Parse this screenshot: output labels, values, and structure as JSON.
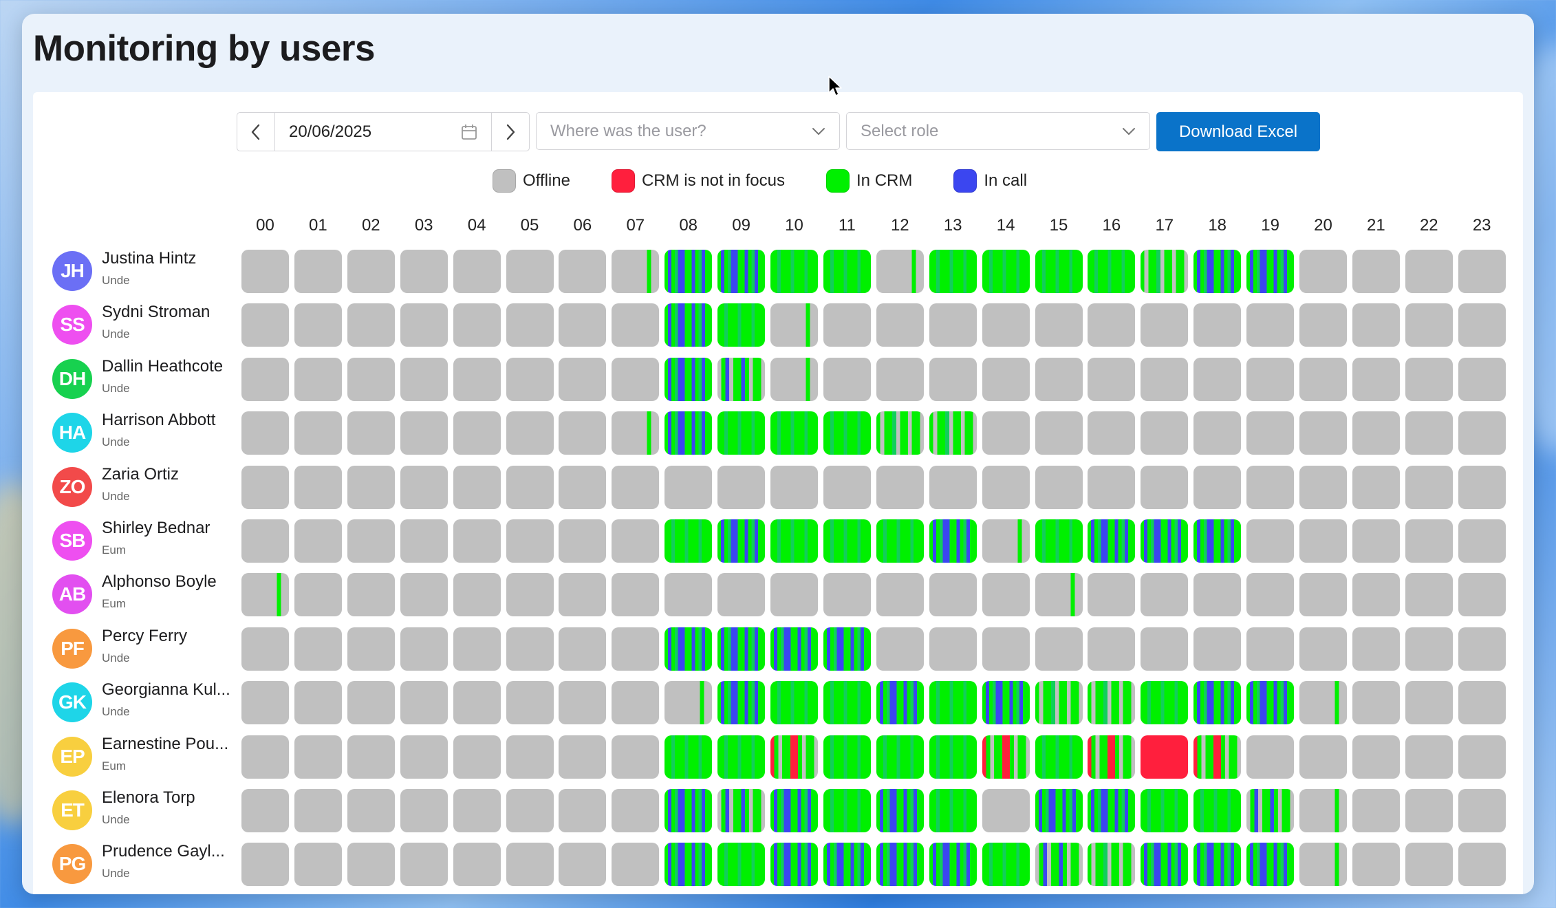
{
  "page": {
    "title": "Monitoring by users"
  },
  "toolbar": {
    "date": "20/06/2025",
    "location_placeholder": "Where was the user?",
    "role_placeholder": "Select role",
    "download_label": "Download Excel"
  },
  "legend": [
    {
      "label": "Offline",
      "color": "#c0c0c0"
    },
    {
      "label": "CRM is not in focus",
      "color": "#ff1f3d"
    },
    {
      "label": "In CRM",
      "color": "#00f000"
    },
    {
      "label": "In call",
      "color": "#3b46f0"
    }
  ],
  "hours": [
    "00",
    "01",
    "02",
    "03",
    "04",
    "05",
    "06",
    "07",
    "08",
    "09",
    "10",
    "11",
    "12",
    "13",
    "14",
    "15",
    "16",
    "17",
    "18",
    "19",
    "20",
    "21",
    "22",
    "23"
  ],
  "users": [
    {
      "initials": "JH",
      "name": "Justina Hintz",
      "role": "Unde",
      "avatar_color": "#6b6ff5",
      "hours": [
        "o",
        "o",
        "o",
        "o",
        "o",
        "o",
        "o",
        "O",
        "M",
        "M",
        "G",
        "G",
        "O",
        "G",
        "G",
        "G",
        "G",
        "g",
        "M",
        "M",
        "o",
        "o",
        "o",
        "o"
      ]
    },
    {
      "initials": "SS",
      "name": "Sydni Stroman",
      "role": "Unde",
      "avatar_color": "#ee4ff0",
      "hours": [
        "o",
        "o",
        "o",
        "o",
        "o",
        "o",
        "o",
        "o",
        "M",
        "G",
        "O",
        "o",
        "o",
        "o",
        "o",
        "o",
        "o",
        "o",
        "o",
        "o",
        "o",
        "o",
        "o",
        "o"
      ]
    },
    {
      "initials": "DH",
      "name": "Dallin Heathcote",
      "role": "Unde",
      "avatar_color": "#17d14f",
      "hours": [
        "o",
        "o",
        "o",
        "o",
        "o",
        "o",
        "o",
        "o",
        "M",
        "m",
        "O",
        "o",
        "o",
        "o",
        "o",
        "o",
        "o",
        "o",
        "o",
        "o",
        "o",
        "o",
        "o",
        "o"
      ]
    },
    {
      "initials": "HA",
      "name": "Harrison Abbott",
      "role": "Unde",
      "avatar_color": "#1ed5e8",
      "hours": [
        "o",
        "o",
        "o",
        "o",
        "o",
        "o",
        "o",
        "O",
        "M",
        "G",
        "G",
        "G",
        "g",
        "g",
        "o",
        "o",
        "o",
        "o",
        "o",
        "o",
        "o",
        "o",
        "o",
        "o"
      ]
    },
    {
      "initials": "ZO",
      "name": "Zaria Ortiz",
      "role": "Unde",
      "avatar_color": "#f24a4a",
      "hours": [
        "o",
        "o",
        "o",
        "o",
        "o",
        "o",
        "o",
        "o",
        "o",
        "o",
        "o",
        "o",
        "o",
        "o",
        "o",
        "o",
        "o",
        "o",
        "o",
        "o",
        "o",
        "o",
        "o",
        "o"
      ]
    },
    {
      "initials": "SB",
      "name": "Shirley Bednar",
      "role": "Eum",
      "avatar_color": "#ee4ff0",
      "hours": [
        "o",
        "o",
        "o",
        "o",
        "o",
        "o",
        "o",
        "o",
        "G",
        "M",
        "G",
        "G",
        "G",
        "M",
        "O",
        "G",
        "M",
        "M",
        "M",
        "o",
        "o",
        "o",
        "o",
        "o"
      ]
    },
    {
      "initials": "AB",
      "name": "Alphonso Boyle",
      "role": "Eum",
      "avatar_color": "#e24ff0",
      "hours": [
        "O",
        "o",
        "o",
        "o",
        "o",
        "o",
        "o",
        "o",
        "o",
        "o",
        "o",
        "o",
        "o",
        "o",
        "o",
        "O",
        "o",
        "o",
        "o",
        "o",
        "o",
        "o",
        "o",
        "o"
      ]
    },
    {
      "initials": "PF",
      "name": "Percy Ferry",
      "role": "Unde",
      "avatar_color": "#f8993f",
      "hours": [
        "o",
        "o",
        "o",
        "o",
        "o",
        "o",
        "o",
        "o",
        "M",
        "M",
        "M",
        "M",
        "o",
        "o",
        "o",
        "o",
        "o",
        "o",
        "o",
        "o",
        "o",
        "o",
        "o",
        "o"
      ]
    },
    {
      "initials": "GK",
      "name": "Georgianna Kul...",
      "role": "Unde",
      "avatar_color": "#1ed5e8",
      "hours": [
        "o",
        "o",
        "o",
        "o",
        "o",
        "o",
        "o",
        "o",
        "O",
        "M",
        "G",
        "G",
        "M",
        "G",
        "M",
        "g",
        "g",
        "G",
        "M",
        "M",
        "O",
        "o",
        "o",
        "o"
      ]
    },
    {
      "initials": "EP",
      "name": "Earnestine Pou...",
      "role": "Eum",
      "avatar_color": "#f8cf3f",
      "hours": [
        "o",
        "o",
        "o",
        "o",
        "o",
        "o",
        "o",
        "o",
        "G",
        "G",
        "R",
        "G",
        "G",
        "G",
        "R",
        "G",
        "R",
        "RR",
        "R",
        "o",
        "o",
        "o",
        "o",
        "o"
      ]
    },
    {
      "initials": "ET",
      "name": "Elenora Torp",
      "role": "Unde",
      "avatar_color": "#f8cf3f",
      "hours": [
        "o",
        "o",
        "o",
        "o",
        "o",
        "o",
        "o",
        "o",
        "M",
        "m",
        "M",
        "G",
        "M",
        "G",
        "o",
        "M",
        "M",
        "G",
        "G",
        "m",
        "O",
        "o",
        "o",
        "o"
      ]
    },
    {
      "initials": "PG",
      "name": "Prudence Gayl...",
      "role": "Unde",
      "avatar_color": "#f8993f",
      "hours": [
        "o",
        "o",
        "o",
        "o",
        "o",
        "o",
        "o",
        "o",
        "M",
        "G",
        "M",
        "M",
        "M",
        "M",
        "G",
        "m",
        "g",
        "M",
        "M",
        "M",
        "O",
        "o",
        "o",
        "o"
      ]
    }
  ]
}
